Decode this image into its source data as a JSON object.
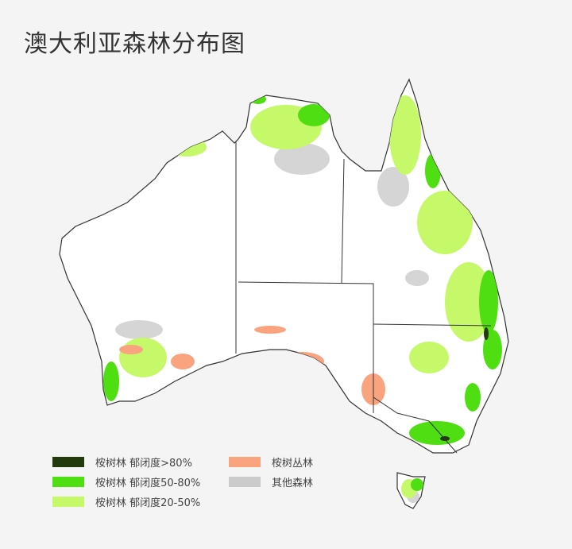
{
  "title": "澳大利亚森林分布图",
  "legend": [
    {
      "label": "桉树林 郁闭度>80%",
      "color": "#233a0c"
    },
    {
      "label": "桉树林 郁闭度50-80%",
      "color": "#4fde12"
    },
    {
      "label": "桉树林 郁闭度20-50%",
      "color": "#c5f969"
    },
    {
      "label": "桉树丛林",
      "color": "#f9a37f"
    },
    {
      "label": "其他森林",
      "color": "#cbcbcb"
    }
  ]
}
